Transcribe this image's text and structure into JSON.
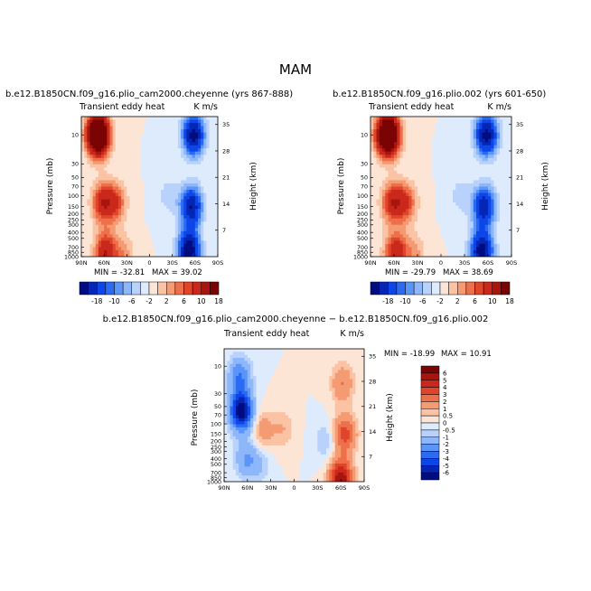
{
  "figure_title": "MAM",
  "chart_data": [
    {
      "type": "heatmap",
      "id": "p1",
      "title": "b.e12.B1850CN.f09_g16.plio_cam2000.cheyenne (yrs 867-888)",
      "left_label": "Transient eddy heat",
      "right_label": "K m/s",
      "ylabel": "Pressure (mb)",
      "y2label": "Height (km)",
      "xticks": [
        "90N",
        "60N",
        "30N",
        "0",
        "30S",
        "60S",
        "90S"
      ],
      "yticks": [
        "10",
        "30",
        "50",
        "70",
        "100",
        "150",
        "200",
        "250",
        "300",
        "400",
        "500",
        "700",
        "850",
        "1000"
      ],
      "y2ticks": [
        "35",
        "28",
        "21",
        "14",
        "7"
      ],
      "min_label": "MIN = -32.81",
      "max_label": "MAX = 39.02",
      "min": -32.81,
      "max": 39.02,
      "features": [
        {
          "lat": 68,
          "p": 10,
          "value": 36
        },
        {
          "lat": 62,
          "p": 130,
          "value": 12
        },
        {
          "lat": 45,
          "p": 130,
          "value": 9
        },
        {
          "lat": 58,
          "p": 850,
          "value": 14
        },
        {
          "lat": 35,
          "p": 900,
          "value": 5
        },
        {
          "lat": -58,
          "p": 10,
          "value": -20
        },
        {
          "lat": -55,
          "p": 150,
          "value": -18
        },
        {
          "lat": -52,
          "p": 800,
          "value": -22
        },
        {
          "lat": -25,
          "p": 100,
          "value": -3
        }
      ]
    },
    {
      "type": "heatmap",
      "id": "p2",
      "title": "b.e12.B1850CN.f09_g16.plio.002 (yrs 601-650)",
      "left_label": "Transient eddy heat",
      "right_label": "K m/s",
      "ylabel": "Pressure (mb)",
      "y2label": "Height (km)",
      "xticks": [
        "90N",
        "60N",
        "30N",
        "0",
        "30S",
        "60S",
        "90S"
      ],
      "yticks": [
        "10",
        "30",
        "50",
        "70",
        "100",
        "150",
        "200",
        "250",
        "300",
        "400",
        "500",
        "700",
        "850",
        "1000"
      ],
      "y2ticks": [
        "35",
        "28",
        "21",
        "14",
        "7"
      ],
      "min_label": "MIN = -29.79",
      "max_label": "MAX = 38.69",
      "min": -29.79,
      "max": 38.69,
      "features": [
        {
          "lat": 68,
          "p": 10,
          "value": 35
        },
        {
          "lat": 62,
          "p": 130,
          "value": 12
        },
        {
          "lat": 45,
          "p": 130,
          "value": 9
        },
        {
          "lat": 58,
          "p": 850,
          "value": 13
        },
        {
          "lat": 35,
          "p": 900,
          "value": 5
        },
        {
          "lat": -58,
          "p": 10,
          "value": -20
        },
        {
          "lat": -55,
          "p": 150,
          "value": -17
        },
        {
          "lat": -52,
          "p": 800,
          "value": -21
        },
        {
          "lat": -25,
          "p": 100,
          "value": -3
        }
      ]
    },
    {
      "type": "heatmap",
      "id": "p3",
      "title": "b.e12.B1850CN.f09_g16.plio_cam2000.cheyenne − b.e12.B1850CN.f09_g16.plio.002",
      "left_label": "Transient eddy heat",
      "right_label": "K m/s",
      "ylabel": "Pressure (mb)",
      "y2label": "Height (km)",
      "xticks": [
        "90N",
        "60N",
        "30N",
        "0",
        "30S",
        "60S",
        "90S"
      ],
      "yticks": [
        "10",
        "30",
        "50",
        "70",
        "100",
        "150",
        "200",
        "250",
        "300",
        "400",
        "500",
        "700",
        "850",
        "1000"
      ],
      "y2ticks": [
        "35",
        "28",
        "21",
        "14",
        "7"
      ],
      "min_label": "MIN = -18.99",
      "max_label": "MAX = 10.91",
      "min": -18.99,
      "max": 10.91,
      "features": [
        {
          "lat": 68,
          "p": 60,
          "value": -7
        },
        {
          "lat": 70,
          "p": 15,
          "value": -3
        },
        {
          "lat": 62,
          "p": 400,
          "value": -2
        },
        {
          "lat": 40,
          "p": 130,
          "value": 1.5
        },
        {
          "lat": 15,
          "p": 120,
          "value": 1.0
        },
        {
          "lat": 45,
          "p": 500,
          "value": -1
        },
        {
          "lat": -62,
          "p": 20,
          "value": 2
        },
        {
          "lat": -65,
          "p": 150,
          "value": 3.5
        },
        {
          "lat": -60,
          "p": 900,
          "value": 6
        },
        {
          "lat": -40,
          "p": 200,
          "value": -1
        }
      ]
    }
  ],
  "colorbars": {
    "main": {
      "labels": [
        "-18",
        "-10",
        "-6",
        "-2",
        "2",
        "6",
        "10",
        "18"
      ],
      "colors": [
        "#000d80",
        "#0526b5",
        "#0d46e8",
        "#2b6bf3",
        "#5b95f9",
        "#8db7fa",
        "#b8d2fb",
        "#deebfd",
        "#fde5d6",
        "#fbc2a4",
        "#f59b73",
        "#ee704a",
        "#e0452c",
        "#c9281a",
        "#a8140e",
        "#7a0403"
      ]
    },
    "diff": {
      "labels": [
        "-6",
        "-5",
        "-4",
        "-3",
        "-2",
        "-1",
        "-0.5",
        "0",
        "0.5",
        "1",
        "2",
        "3",
        "4",
        "5",
        "6"
      ],
      "colors": [
        "#000d80",
        "#0526b5",
        "#0d46e8",
        "#2b6bf3",
        "#5b95f9",
        "#8db7fa",
        "#b8d2fb",
        "#deebfd",
        "#fde5d6",
        "#fbc2a4",
        "#f59b73",
        "#ee704a",
        "#e0452c",
        "#c9281a",
        "#a8140e",
        "#7a0403"
      ]
    }
  }
}
